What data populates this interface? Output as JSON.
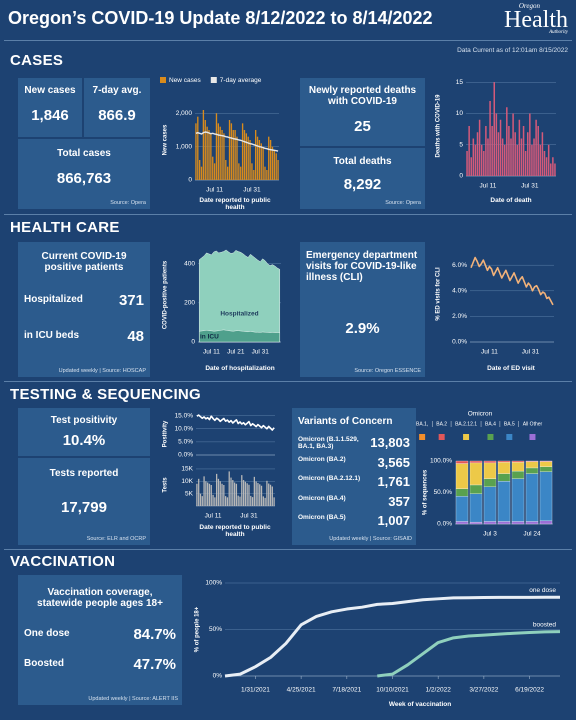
{
  "header": {
    "title": "Oregon’s COVID-19 Update 8/12/2022 to 8/14/2022",
    "logo": {
      "top": "Oregon",
      "main": "Health",
      "bottom": "Authority"
    },
    "data_current": "Data Current as of 12:01am 8/15/2022"
  },
  "cases": {
    "heading": "CASES",
    "new_cases": {
      "label": "New cases",
      "value": "1,846"
    },
    "avg_7day": {
      "label": "7-day avg.",
      "value": "866.9"
    },
    "total_cases": {
      "label": "Total cases",
      "value": "866,763"
    },
    "source": "Source: Opera",
    "new_deaths": {
      "label": "Newly reported deaths with COVID-19",
      "value": "25"
    },
    "total_deaths": {
      "label": "Total deaths",
      "value": "8,292"
    },
    "deaths_source": "Source: Opera"
  },
  "health_care": {
    "heading": "HEALTH CARE",
    "patients": {
      "title": "Current COVID-19 positive patients",
      "hospitalized": {
        "label": "Hospitalized",
        "value": "371"
      },
      "icu": {
        "label": "in ICU beds",
        "value": "48"
      },
      "source": "Updated weekly | Source: HOSCAP"
    },
    "ed": {
      "title": "Emergency department visits for COVID-19-like illness (CLI)",
      "value": "2.9%",
      "source": "Source: Oregon ESSENCE"
    }
  },
  "testing": {
    "heading": "TESTING & SEQUENCING",
    "positivity": {
      "label": "Test positivity",
      "value": "10.4%"
    },
    "tests": {
      "label": "Tests reported",
      "value": "17,799"
    },
    "source": "Source: ELR and OCRP",
    "variants": {
      "title": "Variants of Concern",
      "rows": [
        {
          "label": "Omicron (B.1.1.529, BA.1, BA.3)",
          "value": "13,803"
        },
        {
          "label": "Omicron (BA.2)",
          "value": "3,565"
        },
        {
          "label": "Omicron (BA.2.12.1)",
          "value": "1,761"
        },
        {
          "label": "Omicron (BA.4)",
          "value": "357"
        },
        {
          "label": "Omicron (BA.5)",
          "value": "1,007"
        }
      ],
      "source": "Updated weekly | Source: GISAID"
    }
  },
  "vaccination": {
    "heading": "VACCINATION",
    "title": "Vaccination coverage, statewide people ages 18+",
    "one_dose": {
      "label": "One dose",
      "value": "84.7%"
    },
    "boosted": {
      "label": "Boosted",
      "value": "47.7%"
    },
    "source": "Updated weekly | Source: ALERT IIS"
  },
  "chart_data": [
    {
      "type": "bar",
      "y_label": "New cases",
      "x_label": "Date reported to public health",
      "legend": "top",
      "grid": true,
      "categories": [
        null,
        null,
        null,
        null,
        null,
        null,
        null,
        null,
        null,
        null,
        "Jul 11",
        null,
        null,
        null,
        null,
        null,
        null,
        null,
        null,
        null,
        null,
        null,
        null,
        null,
        null,
        null,
        null,
        null,
        null,
        null,
        "Jul 31",
        null,
        null,
        null,
        null,
        null,
        null,
        null,
        null,
        null,
        null,
        null,
        null,
        null,
        null
      ],
      "series": [
        {
          "name": "New cases",
          "color": "#d98b1c",
          "values": [
            1700,
            1900,
            600,
            400,
            2100,
            1800,
            1600,
            1500,
            1400,
            700,
            500,
            2000,
            1700,
            1600,
            1500,
            1400,
            600,
            400,
            1800,
            1700,
            1500,
            1500,
            1300,
            500,
            400,
            1700,
            1500,
            1400,
            1300,
            1200,
            500,
            300,
            1500,
            1300,
            1200,
            1100,
            1000,
            400,
            300,
            1300,
            1200,
            1000,
            900,
            800,
            600
          ]
        },
        {
          "name": "7-day average",
          "color": "#e8e8e8",
          "type": "line",
          "values": [
            1400,
            1420,
            1400,
            1380,
            1420,
            1440,
            1430,
            1410,
            1390,
            1400,
            1380,
            1370,
            1350,
            1340,
            1330,
            1320,
            1300,
            1290,
            1270,
            1260,
            1240,
            1230,
            1220,
            1200,
            1190,
            1170,
            1150,
            1130,
            1110,
            1090,
            1080,
            1060,
            1040,
            1020,
            1000,
            990,
            970,
            950,
            940,
            920,
            910,
            900,
            890,
            880,
            867
          ]
        }
      ],
      "ylim": [
        0,
        2400
      ],
      "yticks": [
        0,
        {
          "value": 1000,
          "label": "1,000"
        },
        {
          "value": 2000,
          "label": "2,000"
        }
      ]
    },
    {
      "type": "bar",
      "y_label": "Deaths with COVID-19",
      "x_label": "Date of death",
      "grid": true,
      "color": "#d45a7a",
      "categories": [
        null,
        null,
        null,
        null,
        null,
        null,
        null,
        null,
        null,
        null,
        "Jul 11",
        null,
        null,
        null,
        null,
        null,
        null,
        null,
        null,
        null,
        null,
        null,
        null,
        null,
        null,
        null,
        null,
        null,
        null,
        null,
        "Jul 31",
        null,
        null,
        null,
        null,
        null,
        null,
        null,
        null,
        null,
        null,
        null,
        null
      ],
      "values": [
        4,
        8,
        3,
        6,
        5,
        7,
        9,
        5,
        4,
        8,
        6,
        12,
        8,
        15,
        10,
        7,
        9,
        6,
        5,
        11,
        8,
        6,
        10,
        7,
        5,
        9,
        6,
        8,
        4,
        7,
        10,
        5,
        6,
        9,
        8,
        5,
        7,
        4,
        3,
        5,
        2,
        3,
        2
      ],
      "ylim": [
        0,
        16
      ],
      "yticks": [
        0,
        5,
        10,
        15
      ]
    },
    {
      "type": "area",
      "y_label": "COVID-positive patients",
      "x_label": "Date of hospitalization",
      "grid": true,
      "categories": [
        null,
        null,
        null,
        null,
        null,
        "Jul 11",
        null,
        null,
        null,
        null,
        null,
        null,
        null,
        null,
        null,
        "Jul 21",
        null,
        null,
        null,
        null,
        null,
        null,
        null,
        null,
        null,
        "Jul 31",
        null,
        null,
        null,
        null,
        null,
        null,
        null,
        null
      ],
      "series": [
        {
          "name": "Hospitalized",
          "color": "#8fd0bd",
          "values": [
            420,
            430,
            440,
            455,
            450,
            445,
            460,
            465,
            455,
            458,
            462,
            470,
            460,
            452,
            455,
            468,
            462,
            458,
            450,
            440,
            432,
            448,
            438,
            428,
            418,
            410,
            425,
            415,
            400,
            390,
            395,
            388,
            378,
            371
          ]
        },
        {
          "name": "in ICU",
          "color": "#4fa08c",
          "values": [
            55,
            56,
            58,
            60,
            58,
            57,
            55,
            56,
            58,
            60,
            62,
            60,
            58,
            56,
            55,
            57,
            58,
            56,
            55,
            53,
            52,
            54,
            52,
            50,
            50,
            49,
            51,
            50,
            49,
            48,
            49,
            48,
            48,
            48
          ]
        }
      ],
      "ylim": [
        0,
        480
      ],
      "yticks": [
        0,
        200,
        400
      ]
    },
    {
      "type": "line",
      "y_label": "% ED visits for CLI",
      "x_label": "Date of ED visit",
      "grid": true,
      "color": "#f2b27a",
      "categories": [
        null,
        null,
        null,
        null,
        null,
        null,
        null,
        null,
        null,
        "Jul 11",
        null,
        null,
        null,
        null,
        null,
        null,
        null,
        null,
        null,
        null,
        null,
        null,
        null,
        null,
        null,
        null,
        null,
        null,
        null,
        "Jul 31",
        null,
        null,
        null,
        null,
        null,
        null,
        null,
        null,
        null,
        null,
        null
      ],
      "values": [
        5.8,
        6.2,
        6.6,
        6.3,
        5.9,
        6.1,
        6.4,
        6.0,
        5.6,
        5.9,
        5.7,
        5.2,
        5.5,
        5.8,
        5.4,
        5.0,
        5.3,
        5.6,
        5.2,
        4.8,
        5.1,
        5.4,
        5.0,
        4.6,
        4.9,
        5.1,
        4.7,
        4.3,
        4.6,
        4.4,
        4.0,
        4.3,
        4.4,
        4.1,
        3.7,
        3.9,
        3.8,
        3.4,
        3.5,
        3.2,
        2.9
      ],
      "ylim": [
        0,
        7.5
      ],
      "yticks": [
        {
          "value": 0,
          "label": "0.0%"
        },
        {
          "value": 2,
          "label": "2.0%"
        },
        {
          "value": 4,
          "label": "4.0%"
        },
        {
          "value": 6,
          "label": "6.0%"
        }
      ]
    },
    {
      "type": "line",
      "y_label": "Positivity",
      "grid": true,
      "color": "#ffffff",
      "values": [
        14.8,
        15.2,
        14.6,
        14.0,
        14.5,
        13.8,
        14.2,
        13.5,
        14.8,
        13.9,
        13.2,
        14.0,
        13.6,
        12.8,
        13.4,
        13.9,
        12.9,
        13.3,
        12.5,
        13.1,
        12.2,
        12.8,
        13.4,
        12.0,
        12.6,
        11.8,
        12.3,
        11.5,
        12.1,
        12.7,
        11.2,
        11.9,
        11.4,
        10.8,
        11.6,
        11.0,
        10.4,
        11.2,
        10.6,
        10.0,
        10.9,
        10.2,
        9.5,
        10.4
      ],
      "ylim": [
        0,
        16
      ],
      "yticks": [
        {
          "value": 0,
          "label": "0.0%"
        },
        {
          "value": 5,
          "label": "5.0%"
        },
        {
          "value": 10,
          "label": "10.0%"
        },
        {
          "value": 15,
          "label": "15.0%"
        }
      ]
    },
    {
      "type": "bar",
      "y_label": "Tests",
      "x_label": "Date reported to public health",
      "grid": true,
      "color": "#b8b8b8",
      "categories": [
        null,
        null,
        null,
        null,
        null,
        null,
        null,
        null,
        null,
        "Jul 11",
        null,
        null,
        null,
        null,
        null,
        null,
        null,
        null,
        null,
        null,
        null,
        null,
        null,
        null,
        null,
        null,
        null,
        null,
        null,
        "Jul 31",
        null,
        null,
        null,
        null,
        null,
        null,
        null,
        null,
        null,
        null,
        null,
        null,
        null,
        null
      ],
      "values": [
        9000,
        11000,
        5000,
        4000,
        12000,
        10000,
        9500,
        9000,
        8500,
        4500,
        3500,
        13000,
        11000,
        10000,
        9000,
        8500,
        4000,
        3500,
        14000,
        11500,
        10500,
        9500,
        9000,
        4200,
        3800,
        12500,
        10500,
        9800,
        9200,
        8600,
        4100,
        3600,
        11800,
        9900,
        9300,
        8800,
        8200,
        3900,
        3300,
        10200,
        9100,
        8600,
        7900,
        3500
      ],
      "ylim": [
        0,
        17000
      ],
      "yticks": [
        {
          "value": 5000,
          "label": "5K"
        },
        {
          "value": 10000,
          "label": "10K"
        },
        {
          "value": 15000,
          "label": "15K"
        }
      ]
    },
    {
      "type": "stacked_bar",
      "y_label": "% of sequences",
      "legend_title": "Omicron",
      "grid": false,
      "categories": [
        null,
        null,
        "Jul 3",
        null,
        null,
        "Jul 24",
        null
      ],
      "series": [
        {
          "name": "BA.1,",
          "color": "#f28e2b",
          "values": [
            0,
            0,
            0,
            0,
            0,
            0,
            0
          ]
        },
        {
          "name": "BA.2",
          "color": "#e15759",
          "values": [
            4,
            3,
            3,
            2,
            2,
            1,
            1
          ]
        },
        {
          "name": "BA.2.12.1",
          "color": "#edc948",
          "values": [
            40,
            35,
            25,
            18,
            14,
            10,
            8
          ]
        },
        {
          "name": "BA.4",
          "color": "#59a14f",
          "values": [
            12,
            14,
            13,
            12,
            12,
            9,
            8
          ]
        },
        {
          "name": "BA.5",
          "color": "#3b86c6",
          "values": [
            40,
            45,
            55,
            64,
            68,
            76,
            78
          ]
        },
        {
          "name": "All Other",
          "color": "#9b6fd6",
          "values": [
            4,
            3,
            4,
            4,
            4,
            4,
            5
          ]
        }
      ],
      "ylim": [
        0,
        100
      ],
      "yticks": [
        {
          "value": 0,
          "label": "0.0%"
        },
        {
          "value": 50,
          "label": "50.0%"
        },
        {
          "value": 100,
          "label": "100.0%"
        }
      ]
    },
    {
      "type": "line",
      "y_label": "% of people 18+",
      "x_label": "Week of vaccination",
      "grid": true,
      "line_labels": true,
      "x": [
        "12/6/2020",
        "1/3/2021",
        "1/31/2021",
        "2/28/2021",
        "3/28/2021",
        "4/25/2021",
        "5/23/2021",
        "6/20/2021",
        "7/18/2021",
        "8/15/2021",
        "9/12/2021",
        "10/10/2021",
        "11/7/2021",
        "12/5/2021",
        "1/2/2022",
        "1/30/2022",
        "2/27/2022",
        "3/27/2022",
        "4/24/2022",
        "5/22/2022",
        "6/19/2022",
        "7/17/2022",
        "8/14/2022"
      ],
      "series": [
        {
          "name": "one dose",
          "color": "#e8eef5",
          "values": [
            0,
            2,
            10,
            20,
            35,
            55,
            64,
            69,
            72,
            74,
            77,
            78,
            80,
            82,
            83,
            84,
            84.2,
            84.4,
            84.5,
            84.6,
            84.6,
            84.7,
            84.7
          ]
        },
        {
          "name": "boosted",
          "color": "#8fd0bd",
          "values": [
            null,
            null,
            null,
            null,
            null,
            null,
            null,
            null,
            null,
            null,
            0,
            2,
            12,
            24,
            36,
            41,
            43,
            44,
            45,
            46,
            46.8,
            47.4,
            47.7
          ]
        }
      ],
      "xlim": [
        "12/6/2020",
        "8/14/2022"
      ],
      "xticks": [
        "1/31/2021",
        "4/25/2021",
        "7/18/2021",
        "10/10/2021",
        "1/2/2022",
        "3/27/2022",
        "6/19/2022"
      ],
      "ylim": [
        0,
        100
      ],
      "yticks": [
        {
          "value": 0,
          "label": "0%"
        },
        {
          "value": 50,
          "label": "50%"
        },
        {
          "value": 100,
          "label": "100%"
        }
      ]
    }
  ]
}
